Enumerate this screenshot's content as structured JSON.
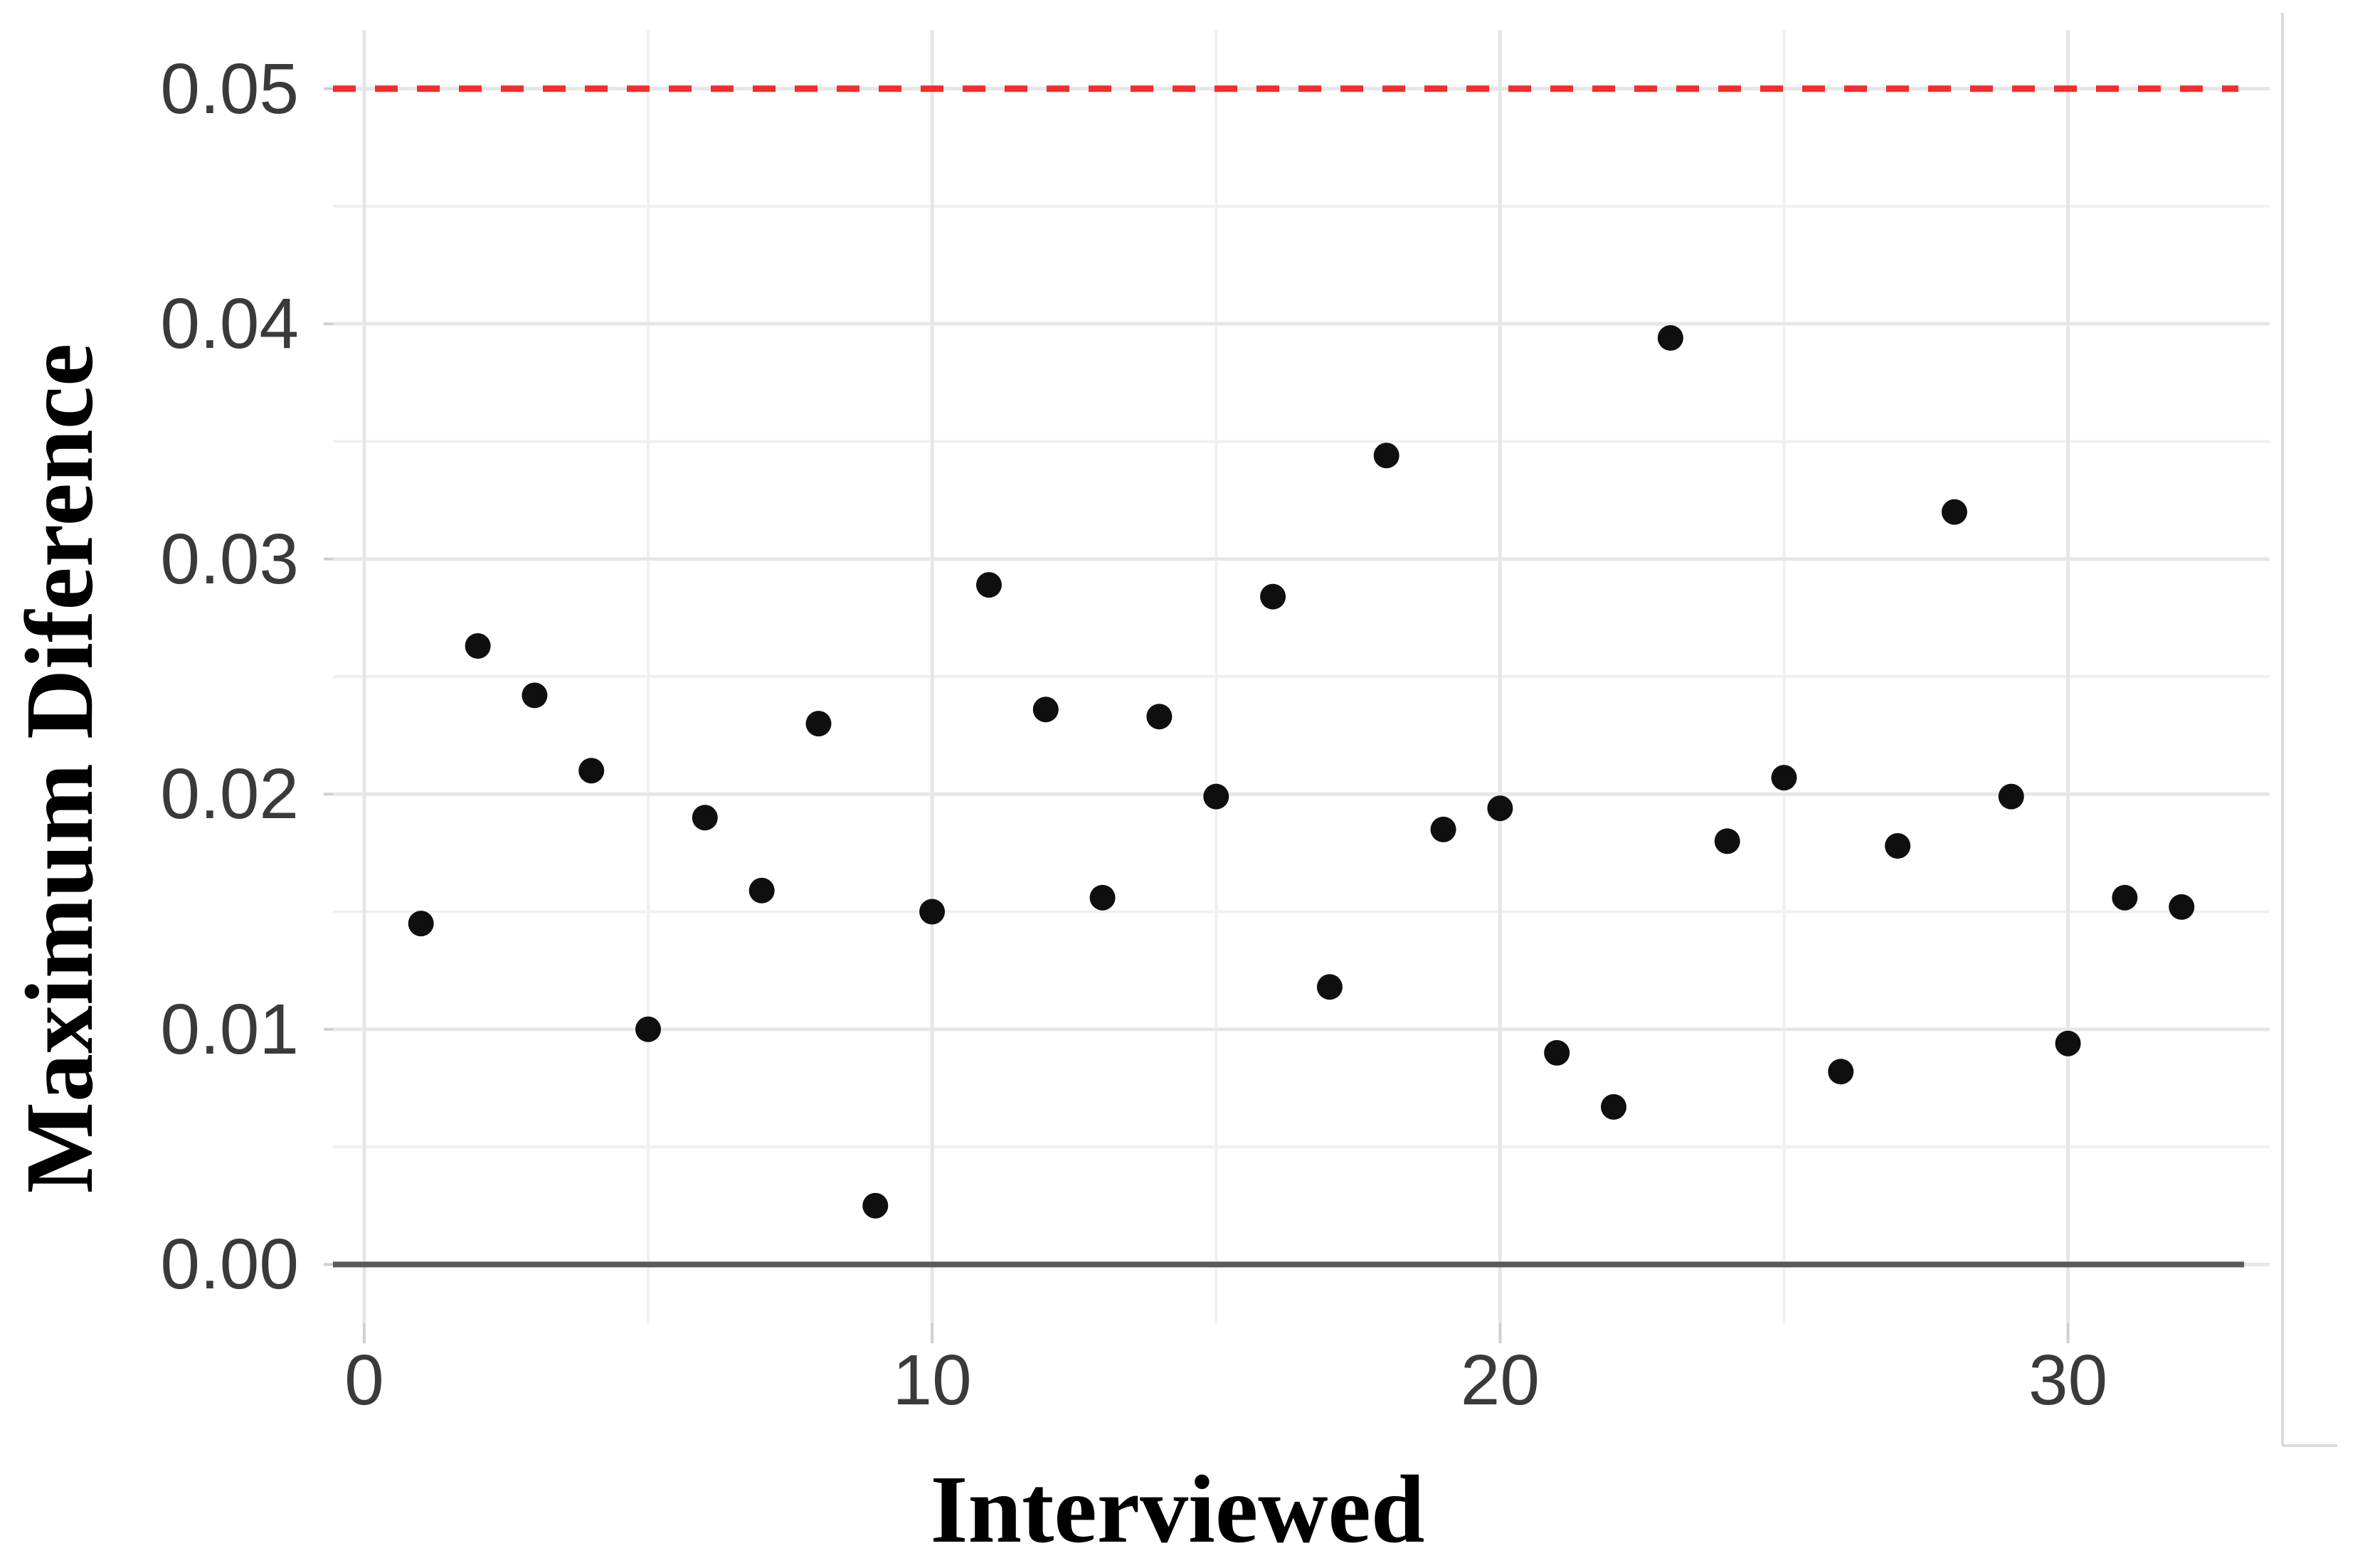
{
  "chart_data": {
    "type": "scatter",
    "title": "",
    "xlabel": "Interviewed",
    "ylabel": "Maximum Diference",
    "x": [
      1,
      2,
      3,
      4,
      5,
      6,
      7,
      8,
      9,
      10,
      11,
      12,
      13,
      14,
      15,
      16,
      17,
      18,
      19,
      20,
      21,
      22,
      23,
      24,
      25,
      26,
      27,
      28,
      29,
      30,
      31,
      32
    ],
    "y": [
      0.0145,
      0.0263,
      0.0242,
      0.021,
      0.01,
      0.019,
      0.0159,
      0.023,
      0.0025,
      0.015,
      0.0289,
      0.0236,
      0.0156,
      0.0233,
      0.0199,
      0.0284,
      0.0118,
      0.0344,
      0.0185,
      0.0194,
      0.009,
      0.0067,
      0.0394,
      0.018,
      0.0207,
      0.0082,
      0.0178,
      0.032,
      0.0199,
      0.0094,
      0.0156,
      0.0152
    ],
    "point_color": "#0f0f0f",
    "point_radius_px": 18,
    "threshold_line": {
      "value": 0.05,
      "color": "#f82b2d",
      "style": "dashed"
    },
    "zero_line": {
      "value": 0.0,
      "color": "#595959",
      "style": "solid"
    },
    "x_ticks": {
      "values": [
        0,
        10,
        20,
        30
      ],
      "labels": [
        "0",
        "10",
        "20",
        "30"
      ]
    },
    "y_ticks": {
      "values": [
        0,
        0.01,
        0.02,
        0.03,
        0.04,
        0.05
      ],
      "labels": [
        "0.00",
        "0.01",
        "0.02",
        "0.03",
        "0.04",
        "0.05"
      ]
    },
    "x_minor_ticks": [
      5,
      15,
      25
    ],
    "y_minor_ticks": [
      0.005,
      0.015,
      0.025,
      0.035,
      0.045
    ],
    "xlim": [
      -0.55,
      33.55
    ],
    "ylim": [
      -0.0025,
      0.0525
    ],
    "grid": "on",
    "legend": "none",
    "background_color": "#ffffff",
    "major_grid_color": "#e6e6e6",
    "minor_grid_color": "#f0f0f0",
    "tick_mark_color": "#cfcfcf",
    "tick_label_color": "#3a3a3a",
    "axis_title_color": "#000000",
    "border_artifact_color": "#dadada"
  }
}
